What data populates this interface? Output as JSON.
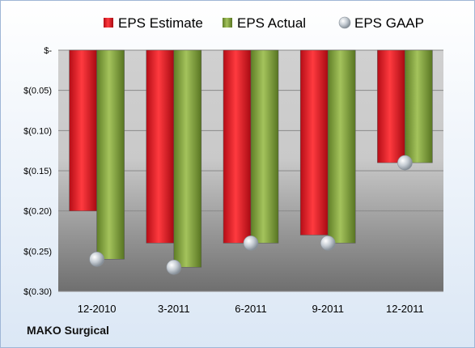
{
  "chart_data": {
    "type": "bar",
    "title": "",
    "xlabel": "",
    "ylabel": "",
    "categories": [
      "12-2010",
      "3-2011",
      "6-2011",
      "9-2011",
      "12-2011"
    ],
    "series": [
      {
        "name": "EPS Estimate",
        "values": [
          -0.2,
          -0.24,
          -0.24,
          -0.23,
          -0.14
        ],
        "color": "#d9141e",
        "kind": "bar"
      },
      {
        "name": "EPS Actual",
        "values": [
          -0.26,
          -0.27,
          -0.24,
          -0.24,
          -0.14
        ],
        "color": "#7fa13b",
        "kind": "bar"
      },
      {
        "name": "EPS GAAP",
        "values": [
          -0.26,
          -0.27,
          -0.24,
          -0.24,
          -0.14
        ],
        "color": "#b0b8c0",
        "kind": "marker"
      }
    ],
    "ylim": [
      -0.3,
      0
    ],
    "yticks": [
      0,
      -0.05,
      -0.1,
      -0.15,
      -0.2,
      -0.25,
      -0.3
    ],
    "ytick_labels": [
      "$-",
      "$(0.05)",
      "$(0.10)",
      "$(0.15)",
      "$(0.20)",
      "$(0.25)",
      "$(0.30)"
    ],
    "grid": true,
    "legend_position": "top"
  },
  "company_label": "MAKO Surgical"
}
